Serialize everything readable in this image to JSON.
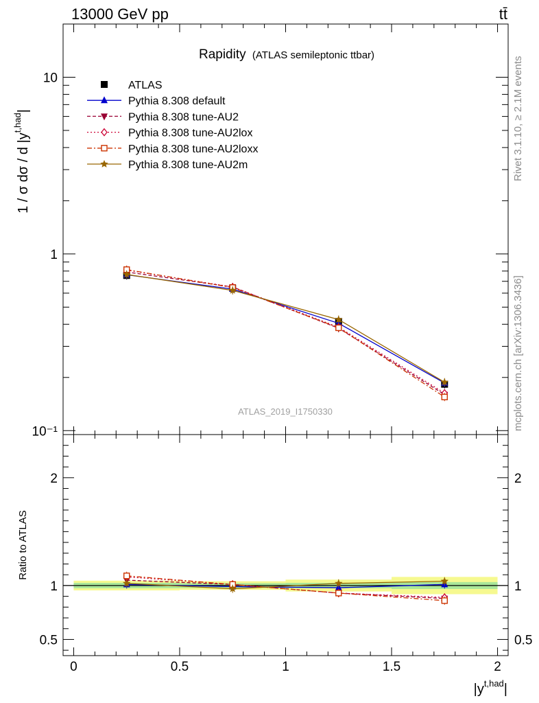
{
  "header": {
    "energy_label": "13000 GeV pp",
    "process_label": "tt̄"
  },
  "side_labels": {
    "rivet": "Rivet 3.1.10, ≥ 2.1M events",
    "mcplots": "mcplots.cern.ch [arXiv:1306.3436]"
  },
  "chart_data": [
    {
      "type": "line",
      "title": "Rapidity",
      "subtitle": "(ATLAS semileptonic ttbar)",
      "watermark": "ATLAS_2019_I1750330",
      "xlabel": "|y^{t,had}|",
      "ylabel": "1 / σ dσ / d |y^{t,had}|",
      "yscale": "log",
      "xlim": [
        -0.05,
        2.05
      ],
      "ylim": [
        0.095,
        20
      ],
      "x_ticks": [
        "0",
        "0.5",
        "1",
        "1.5",
        "2"
      ],
      "y_ticks": [
        {
          "value": 10,
          "label": "10"
        },
        {
          "value": 1,
          "label": "1"
        },
        {
          "value": 0.1,
          "label": "10⁻¹"
        }
      ],
      "legend_position": "top-left",
      "x": [
        0.25,
        0.75,
        1.25,
        1.75
      ],
      "series": [
        {
          "name": "ATLAS",
          "values": [
            0.755,
            0.64,
            0.415,
            0.183
          ],
          "color": "#000000",
          "marker": "square",
          "dash": "",
          "line": false
        },
        {
          "name": "Pythia 8.308 default",
          "values": [
            0.762,
            0.632,
            0.405,
            0.186
          ],
          "color": "#0000cc",
          "marker": "triangle-up",
          "dash": "",
          "line": true
        },
        {
          "name": "Pythia 8.308 tune-AU2",
          "values": [
            0.79,
            0.65,
            0.38,
            0.16
          ],
          "color": "#990033",
          "marker": "triangle-down",
          "dash": "5,3",
          "line": true
        },
        {
          "name": "Pythia 8.308 tune-AU2lox",
          "values": [
            0.81,
            0.65,
            0.385,
            0.163
          ],
          "color": "#cc0033",
          "marker": "diamond-open",
          "dash": "2,3",
          "line": true
        },
        {
          "name": "Pythia 8.308 tune-AU2loxx",
          "values": [
            0.815,
            0.645,
            0.382,
            0.155
          ],
          "color": "#cc3300",
          "marker": "square-open",
          "dash": "7,3,2,3",
          "line": true
        },
        {
          "name": "Pythia 8.308 tune-AU2m",
          "values": [
            0.765,
            0.622,
            0.425,
            0.188
          ],
          "color": "#996600",
          "marker": "star",
          "dash": "",
          "line": true
        }
      ]
    },
    {
      "type": "line",
      "ylabel": "Ratio to ATLAS",
      "xlabel": "|y^{t,had}|",
      "xlim": [
        -0.05,
        2.05
      ],
      "ylim": [
        0.35,
        2.4
      ],
      "y_ticks": [
        {
          "value": 2,
          "label": "2"
        },
        {
          "value": 1,
          "label": "1"
        },
        {
          "value": 0.5,
          "label": "0.5"
        }
      ],
      "x": [
        0.25,
        0.75,
        1.25,
        1.75
      ],
      "uncertainty_band": {
        "x_edges": [
          0,
          0.5,
          1,
          1.5,
          2
        ],
        "stat": [
          0.025,
          0.022,
          0.025,
          0.032
        ],
        "total": [
          0.045,
          0.04,
          0.055,
          0.08
        ]
      },
      "series": [
        {
          "name": "Pythia 8.308 default",
          "values": [
            1.01,
            0.99,
            0.98,
            1.01
          ],
          "color": "#0000cc",
          "marker": "triangle-up",
          "dash": "",
          "line": true
        },
        {
          "name": "Pythia 8.308 tune-AU2",
          "values": [
            1.05,
            1.01,
            0.93,
            0.88
          ],
          "color": "#990033",
          "marker": "triangle-down",
          "dash": "5,3",
          "line": true
        },
        {
          "name": "Pythia 8.308 tune-AU2lox",
          "values": [
            1.08,
            1.01,
            0.93,
            0.89
          ],
          "color": "#cc0033",
          "marker": "diamond-open",
          "dash": "2,3",
          "line": true
        },
        {
          "name": "Pythia 8.308 tune-AU2loxx",
          "values": [
            1.09,
            1.01,
            0.93,
            0.86
          ],
          "color": "#cc3300",
          "marker": "square-open",
          "dash": "7,3,2,3",
          "line": true
        },
        {
          "name": "Pythia 8.308 tune-AU2m",
          "values": [
            1.02,
            0.97,
            1.02,
            1.04
          ],
          "color": "#996600",
          "marker": "star",
          "dash": "",
          "line": true
        }
      ]
    }
  ]
}
